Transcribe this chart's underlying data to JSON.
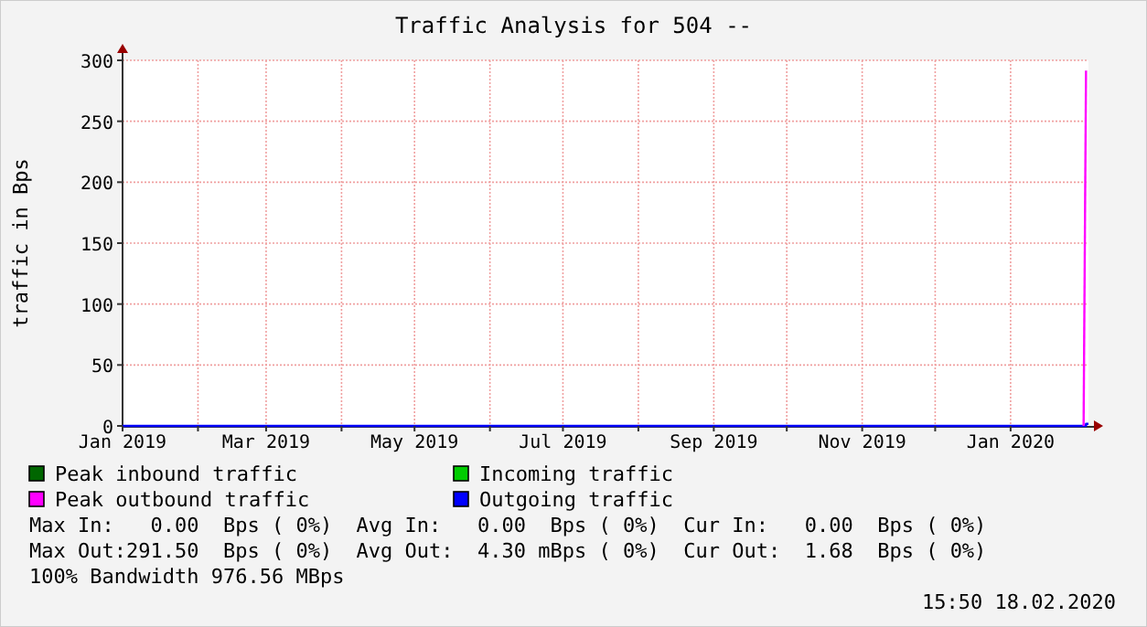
{
  "chart_data": {
    "type": "step",
    "title": "Traffic Analysis for 504 --",
    "ylabel": "traffic in Bps",
    "x": [
      "2019-01-01",
      "2020-01-31",
      "2020-02-01",
      "2020-02-02"
    ],
    "series": [
      {
        "name": "Peak inbound traffic",
        "color": "#006600",
        "values": [
          null,
          null,
          null,
          null
        ]
      },
      {
        "name": "Incoming traffic",
        "color": "#00cc00",
        "values": [
          null,
          null,
          null,
          null
        ]
      },
      {
        "name": "Peak outbound traffic",
        "color": "#ff00ff",
        "type": "line",
        "x": [
          "2020-01-31",
          "2020-02-01"
        ],
        "values": [
          0,
          291.5
        ]
      },
      {
        "name": "Outgoing traffic",
        "color": "#0000ff",
        "values": [
          0,
          0,
          1.68,
          1.68
        ]
      }
    ],
    "xlim": [
      "2019-01-01",
      "2020-02-02"
    ],
    "xticks": [
      {
        "value": "2019-01-01",
        "label": "Jan 2019"
      },
      {
        "value": "2019-02-01",
        "label": null
      },
      {
        "value": "2019-03-01",
        "label": "Mar 2019"
      },
      {
        "value": "2019-04-01",
        "label": null
      },
      {
        "value": "2019-05-01",
        "label": "May 2019"
      },
      {
        "value": "2019-06-01",
        "label": null
      },
      {
        "value": "2019-07-01",
        "label": "Jul 2019"
      },
      {
        "value": "2019-08-01",
        "label": null
      },
      {
        "value": "2019-09-01",
        "label": "Sep 2019"
      },
      {
        "value": "2019-10-01",
        "label": null
      },
      {
        "value": "2019-11-01",
        "label": "Nov 2019"
      },
      {
        "value": "2019-12-01",
        "label": null
      },
      {
        "value": "2020-01-01",
        "label": "Jan 2020"
      }
    ],
    "ylim": [
      0,
      300
    ],
    "yticks": [
      0,
      50,
      100,
      150,
      200,
      250,
      300
    ],
    "grid": true,
    "legend": "bottom",
    "annotations": [
      "Max In:   0.00  Bps ( 0%)  Avg In:   0.00  Bps ( 0%)  Cur In:   0.00  Bps ( 0%)",
      "Max Out:291.50  Bps ( 0%)  Avg Out:  4.30 mBps ( 0%)  Cur Out:  1.68  Bps ( 0%)",
      "100% Bandwidth 976.56 MBps",
      "15:50 18.02.2020"
    ]
  }
}
